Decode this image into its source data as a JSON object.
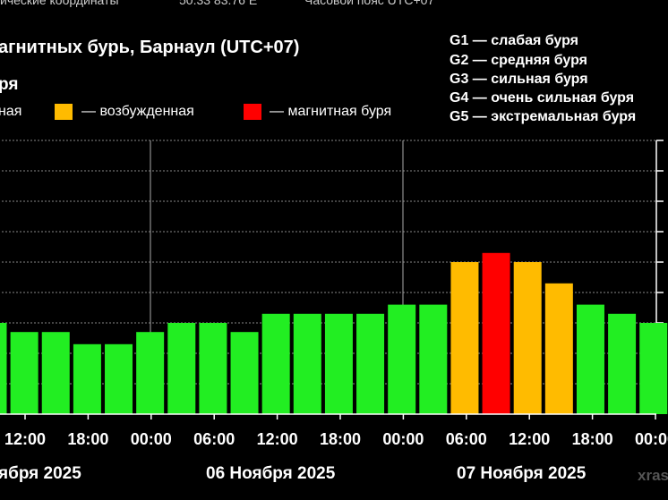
{
  "header": {
    "top_left": "ические координаты",
    "top_mid": "50.33 83.76 E",
    "top_right": "Часовой пояс UTC+07"
  },
  "chart_data": {
    "type": "bar",
    "title": "агнитных бурь, Барнаул (UTC+07)",
    "subtitle": "ря",
    "legend": [
      {
        "label": "ная",
        "color": "#22ee22"
      },
      {
        "label": "— возбужденная",
        "color": "#ffbb00"
      },
      {
        "label": "— магнитная буря",
        "color": "#ff0000"
      }
    ],
    "g_scale": [
      "G1 — слабая буря",
      "G2 — средняя буря",
      "G3 — сильная буря",
      "G4 — очень сильная буря",
      "G5 — экстремальная буря"
    ],
    "x_tick_labels": [
      "12:00",
      "18:00",
      "00:00",
      "06:00",
      "12:00",
      "18:00",
      "00:00",
      "06:00",
      "12:00",
      "18:00",
      "00:00"
    ],
    "date_labels": [
      "ября 2025",
      "06 Ноября 2025",
      "07 Ноября 2025"
    ],
    "ylim": [
      0,
      9
    ],
    "gridlines_y": [
      1,
      2,
      3,
      4,
      5,
      6,
      7,
      8,
      9
    ],
    "bars": [
      {
        "value": 3.0,
        "level": "green"
      },
      {
        "value": 2.7,
        "level": "green"
      },
      {
        "value": 2.7,
        "level": "green"
      },
      {
        "value": 2.3,
        "level": "green"
      },
      {
        "value": 2.3,
        "level": "green"
      },
      {
        "value": 2.7,
        "level": "green"
      },
      {
        "value": 3.0,
        "level": "green"
      },
      {
        "value": 3.0,
        "level": "green"
      },
      {
        "value": 2.7,
        "level": "green"
      },
      {
        "value": 3.3,
        "level": "green"
      },
      {
        "value": 3.3,
        "level": "green"
      },
      {
        "value": 3.3,
        "level": "green"
      },
      {
        "value": 3.3,
        "level": "green"
      },
      {
        "value": 3.6,
        "level": "green"
      },
      {
        "value": 3.6,
        "level": "green"
      },
      {
        "value": 5.0,
        "level": "orange"
      },
      {
        "value": 5.3,
        "level": "red"
      },
      {
        "value": 5.0,
        "level": "orange"
      },
      {
        "value": 4.3,
        "level": "orange"
      },
      {
        "value": 3.6,
        "level": "green"
      },
      {
        "value": 3.3,
        "level": "green"
      },
      {
        "value": 3.0,
        "level": "green"
      }
    ],
    "colors": {
      "green": "#22ee22",
      "orange": "#ffbb00",
      "red": "#ff0000",
      "grid": "#ffffff",
      "axis": "#ffffff"
    },
    "watermark": "xras"
  }
}
